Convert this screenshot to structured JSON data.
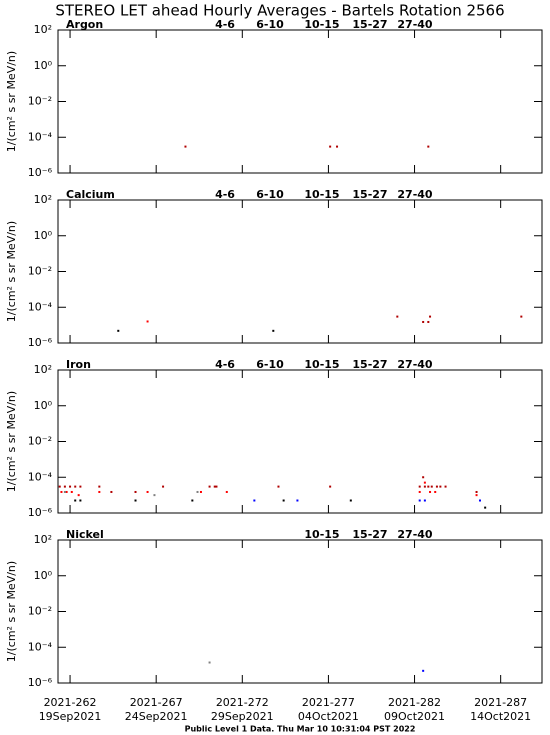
{
  "title": "STEREO LET ahead Hourly Averages - Bartels Rotation 2566",
  "footer": "Public Level 1 Data. Thu Mar 10 10:31:04 PST 2022",
  "chart_data": [
    {
      "type": "scatter",
      "panel_label": "Argon",
      "ylabel": "1/(cm² s sr MeV/n)",
      "yscale": "log",
      "xlim": [
        261.3,
        289.4
      ],
      "xticks": [
        262,
        267,
        272,
        277,
        282,
        287
      ],
      "ylim": [
        1e-06,
        100
      ],
      "yticks": [
        {
          "value": 100,
          "label": "10²"
        },
        {
          "value": 1,
          "label": "10⁰"
        },
        {
          "value": 0.01,
          "label": "10⁻²"
        },
        {
          "value": 0.0001,
          "label": "10⁻⁴"
        },
        {
          "value": 1e-06,
          "label": "10⁻⁶"
        }
      ],
      "series": [
        {
          "name": "4-6",
          "color": "#b00000",
          "x": [
            268.7,
            277.1,
            277.5,
            282.8
          ],
          "values": [
            3e-05,
            3e-05,
            3e-05,
            3e-05
          ]
        },
        {
          "name": "6-10",
          "color": "#ff0000",
          "x": [],
          "values": []
        },
        {
          "name": "10-15",
          "color": "#808080",
          "x": [],
          "values": []
        },
        {
          "name": "15-27",
          "color": "#0000ff",
          "x": [],
          "values": []
        },
        {
          "name": "27-40",
          "color": "#000000",
          "x": [],
          "values": []
        }
      ]
    },
    {
      "type": "scatter",
      "panel_label": "Calcium",
      "ylabel": "1/(cm² s sr MeV/n)",
      "yscale": "log",
      "xlim": [
        261.3,
        289.4
      ],
      "xticks": [
        262,
        267,
        272,
        277,
        282,
        287
      ],
      "ylim": [
        1e-06,
        100
      ],
      "yticks": [
        {
          "value": 100,
          "label": "10²"
        },
        {
          "value": 1,
          "label": "10⁰"
        },
        {
          "value": 0.01,
          "label": "10⁻²"
        },
        {
          "value": 0.0001,
          "label": "10⁻⁴"
        },
        {
          "value": 1e-06,
          "label": "10⁻⁶"
        }
      ],
      "series": [
        {
          "name": "4-6",
          "color": "#b00000",
          "x": [
            281.0,
            282.5,
            282.8,
            282.9,
            288.2
          ],
          "values": [
            3e-05,
            1.5e-05,
            1.5e-05,
            3e-05,
            3e-05
          ]
        },
        {
          "name": "6-10",
          "color": "#ff0000",
          "x": [
            266.5
          ],
          "values": [
            1.6e-05
          ]
        },
        {
          "name": "10-15",
          "color": "#808080",
          "x": [],
          "values": []
        },
        {
          "name": "15-27",
          "color": "#0000ff",
          "x": [],
          "values": []
        },
        {
          "name": "27-40",
          "color": "#000000",
          "x": [
            264.8,
            273.8
          ],
          "values": [
            4.8e-06,
            4.8e-06
          ]
        }
      ]
    },
    {
      "type": "scatter",
      "panel_label": "Iron",
      "ylabel": "1/(cm² s sr MeV/n)",
      "yscale": "log",
      "xlim": [
        261.3,
        289.4
      ],
      "xticks": [
        262,
        267,
        272,
        277,
        282,
        287
      ],
      "ylim": [
        1e-06,
        100
      ],
      "yticks": [
        {
          "value": 100,
          "label": "10²"
        },
        {
          "value": 1,
          "label": "10⁰"
        },
        {
          "value": 0.01,
          "label": "10⁻²"
        },
        {
          "value": 0.0001,
          "label": "10⁻⁴"
        },
        {
          "value": 1e-06,
          "label": "10⁻⁶"
        }
      ],
      "series": [
        {
          "name": "4-6",
          "color": "#b00000",
          "x": [
            261.4,
            261.7,
            262.0,
            262.3,
            262.6,
            263.7,
            264.4,
            265.8,
            267.4,
            270.1,
            270.4,
            270.5,
            274.1,
            277.1,
            282.3,
            282.5,
            282.6,
            282.8,
            283.0,
            283.3,
            283.5,
            283.8,
            285.6
          ],
          "values": [
            3e-05,
            3e-05,
            3e-05,
            3e-05,
            3e-05,
            3e-05,
            1.5e-05,
            1.5e-05,
            3e-05,
            3e-05,
            3e-05,
            3e-05,
            3e-05,
            3e-05,
            3e-05,
            0.0001,
            3e-05,
            3e-05,
            3e-05,
            3e-05,
            3e-05,
            3e-05,
            1.5e-05
          ]
        },
        {
          "name": "6-10",
          "color": "#ff0000",
          "x": [
            261.5,
            261.8,
            262.1,
            262.5,
            263.7,
            266.5,
            269.6,
            271.1,
            282.3,
            282.6,
            282.9,
            283.2,
            285.6
          ],
          "values": [
            1.5e-05,
            1.5e-05,
            1.5e-05,
            1e-05,
            1.5e-05,
            1.5e-05,
            1.5e-05,
            1.5e-05,
            1.5e-05,
            5e-05,
            1.5e-05,
            1.5e-05,
            1e-05
          ]
        },
        {
          "name": "10-15",
          "color": "#808080",
          "x": [
            261.7,
            266.9,
            269.4
          ],
          "values": [
            1.5e-05,
            1e-05,
            1.5e-05
          ]
        },
        {
          "name": "15-27",
          "color": "#0000ff",
          "x": [
            272.7,
            275.2,
            282.3,
            282.6,
            285.8
          ],
          "values": [
            5e-06,
            5e-06,
            5e-06,
            5e-06,
            5e-06
          ]
        },
        {
          "name": "27-40",
          "color": "#000000",
          "x": [
            262.3,
            262.6,
            265.8,
            269.1,
            274.4,
            278.3,
            286.1
          ],
          "values": [
            5e-06,
            5e-06,
            5e-06,
            5e-06,
            5e-06,
            5e-06,
            2e-06
          ]
        }
      ]
    },
    {
      "type": "scatter",
      "panel_label": "Nickel",
      "ylabel": "1/(cm² s sr MeV/n)",
      "yscale": "log",
      "xlim": [
        261.3,
        289.4
      ],
      "xticks": [
        {
          "value": 262,
          "label": "2021-262"
        },
        {
          "value": 267,
          "label": "2021-267"
        },
        {
          "value": 272,
          "label": "2021-272"
        },
        {
          "value": 277,
          "label": "2021-277"
        },
        {
          "value": 282,
          "label": "2021-282"
        },
        {
          "value": 287,
          "label": "2021-287"
        }
      ],
      "xtick_dates": [
        "19Sep2021",
        "24Sep2021",
        "29Sep2021",
        "04Oct2021",
        "09Oct2021",
        "14Oct2021"
      ],
      "ylim": [
        1e-06,
        100
      ],
      "yticks": [
        {
          "value": 100,
          "label": "10²"
        },
        {
          "value": 1,
          "label": "10⁰"
        },
        {
          "value": 0.01,
          "label": "10⁻²"
        },
        {
          "value": 0.0001,
          "label": "10⁻⁴"
        },
        {
          "value": 1e-06,
          "label": "10⁻⁶"
        }
      ],
      "series": [
        {
          "name": "10-15",
          "color": "#808080",
          "x": [
            270.1
          ],
          "values": [
            1.4e-05
          ]
        },
        {
          "name": "15-27",
          "color": "#0000ff",
          "x": [
            282.5
          ],
          "values": [
            4.8e-06
          ]
        },
        {
          "name": "27-40",
          "color": "#000000",
          "x": [],
          "values": []
        }
      ]
    }
  ]
}
